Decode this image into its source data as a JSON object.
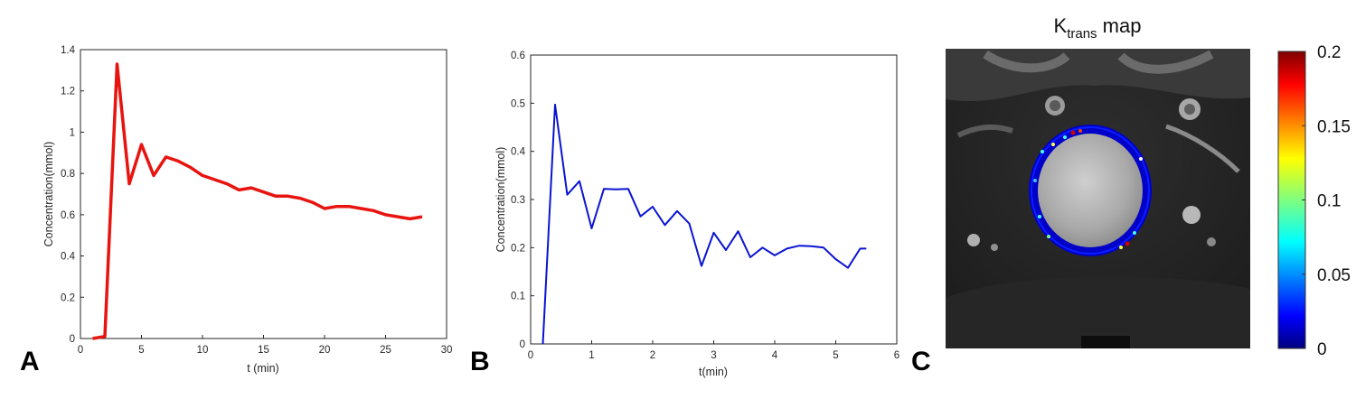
{
  "panels": {
    "a": {
      "letter": "A"
    },
    "b": {
      "letter": "B"
    },
    "c": {
      "letter": "C"
    }
  },
  "chart_data": [
    {
      "type": "line",
      "panel": "A",
      "title": "",
      "xlabel": "t (min)",
      "ylabel": "Concentration(mmol)",
      "xlim": [
        0,
        30
      ],
      "ylim": [
        0,
        1.4
      ],
      "xticks": [
        0,
        5,
        10,
        15,
        20,
        25,
        30
      ],
      "yticks": [
        0,
        0.2,
        0.4,
        0.6,
        0.8,
        1,
        1.2,
        1.4
      ],
      "grid": false,
      "color": "#e8140f",
      "series": [
        {
          "x": [
            1,
            2,
            3,
            4,
            5,
            6,
            7,
            8,
            9,
            10,
            11,
            12,
            13,
            14,
            15,
            16,
            17,
            18,
            19,
            20,
            21,
            22,
            23,
            24,
            25,
            26,
            27,
            28
          ],
          "y": [
            0,
            0.01,
            1.33,
            0.75,
            0.94,
            0.79,
            0.88,
            0.86,
            0.83,
            0.79,
            0.77,
            0.75,
            0.72,
            0.73,
            0.71,
            0.69,
            0.69,
            0.68,
            0.66,
            0.63,
            0.64,
            0.64,
            0.63,
            0.62,
            0.6,
            0.59,
            0.58,
            0.59
          ]
        }
      ]
    },
    {
      "type": "line",
      "panel": "B",
      "title": "",
      "xlabel": "t(min)",
      "ylabel": "Concentration(mmol)",
      "xlim": [
        0,
        6
      ],
      "ylim": [
        0,
        0.6
      ],
      "xticks": [
        0,
        1,
        2,
        3,
        4,
        5,
        6
      ],
      "yticks": [
        0,
        0.1,
        0.2,
        0.3,
        0.4,
        0.5,
        0.6
      ],
      "grid": false,
      "color": "#0a14d2",
      "series": [
        {
          "x": [
            0.2,
            0.4,
            0.6,
            0.8,
            1.0,
            1.2,
            1.4,
            1.6,
            1.8,
            2.0,
            2.2,
            2.4,
            2.6,
            2.8,
            3.0,
            3.2,
            3.4,
            3.6,
            3.8,
            4.0,
            4.2,
            4.4,
            4.6,
            4.8,
            5.0,
            5.2,
            5.4,
            5.5
          ],
          "y": [
            0.0,
            0.497,
            0.31,
            0.338,
            0.24,
            0.322,
            0.321,
            0.322,
            0.265,
            0.285,
            0.247,
            0.276,
            0.25,
            0.162,
            0.231,
            0.195,
            0.234,
            0.18,
            0.2,
            0.184,
            0.198,
            0.204,
            0.203,
            0.2,
            0.176,
            0.158,
            0.198,
            0.198
          ]
        }
      ]
    },
    {
      "type": "heatmap",
      "panel": "C",
      "title_main": "K",
      "title_sub": "trans",
      "title_rest": " map",
      "colormap": "jet",
      "clim": [
        0,
        0.2
      ],
      "colorbar_ticks": [
        "0",
        "0.05",
        "0.1",
        "0.15",
        "0.2"
      ],
      "colorbar_values": [
        0,
        0.05,
        0.1,
        0.15,
        0.2
      ]
    }
  ]
}
